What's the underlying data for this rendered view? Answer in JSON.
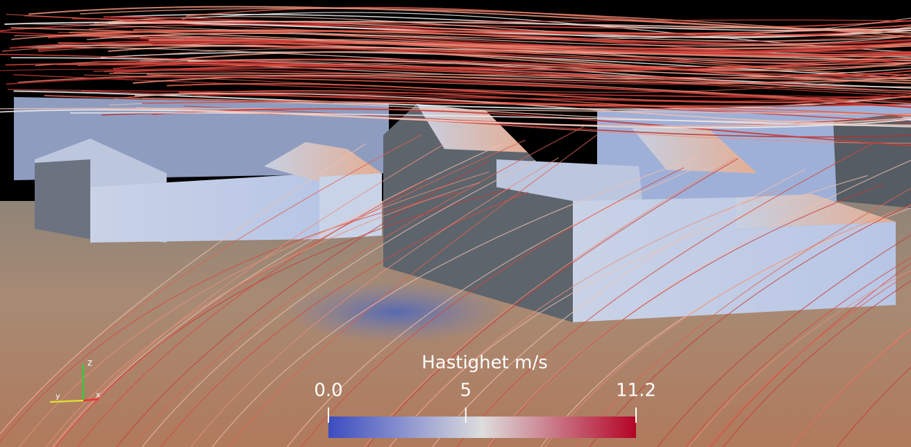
{
  "colorbar": {
    "title": "Hastighet m/s",
    "range": [
      0,
      11.2
    ],
    "ticks": [
      {
        "value": 0,
        "label": "0.0"
      },
      5,
      11.2
    ],
    "colors": [
      "#3b4cc0",
      "#dddddd",
      "#b40426"
    ]
  },
  "axes_triad": {
    "z": "z",
    "y": "y",
    "x": "x"
  }
}
